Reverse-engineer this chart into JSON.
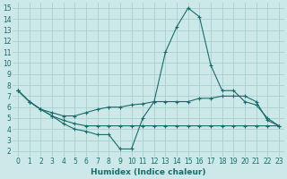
{
  "xlabel": "Humidex (Indice chaleur)",
  "bg_color": "#cce8e8",
  "grid_color": "#aacfcf",
  "line_color": "#1a6b6b",
  "xlim": [
    -0.5,
    23.5
  ],
  "ylim": [
    1.5,
    15.5
  ],
  "xticks": [
    0,
    1,
    2,
    3,
    4,
    5,
    6,
    7,
    8,
    9,
    10,
    11,
    12,
    13,
    14,
    15,
    16,
    17,
    18,
    19,
    20,
    21,
    22,
    23
  ],
  "yticks": [
    2,
    3,
    4,
    5,
    6,
    7,
    8,
    9,
    10,
    11,
    12,
    13,
    14,
    15
  ],
  "line1_x": [
    0,
    1,
    2,
    3,
    4,
    5,
    6,
    7,
    8,
    9,
    10,
    11,
    12,
    13,
    14,
    15,
    16,
    17,
    18,
    19,
    20,
    21,
    22,
    23
  ],
  "line1_y": [
    7.5,
    6.5,
    5.8,
    5.2,
    4.5,
    4.0,
    3.8,
    3.5,
    3.5,
    2.2,
    2.2,
    5.0,
    6.5,
    11.0,
    13.3,
    15.0,
    14.2,
    9.8,
    7.5,
    7.5,
    6.5,
    6.2,
    5.0,
    4.3
  ],
  "line2_x": [
    0,
    1,
    2,
    3,
    4,
    5,
    6,
    7,
    8,
    9,
    10,
    11,
    12,
    13,
    14,
    15,
    16,
    17,
    18,
    19,
    20,
    21,
    22,
    23
  ],
  "line2_y": [
    7.5,
    6.5,
    5.8,
    5.5,
    5.2,
    5.2,
    5.5,
    5.8,
    6.0,
    6.0,
    6.2,
    6.3,
    6.5,
    6.5,
    6.5,
    6.5,
    6.8,
    6.8,
    7.0,
    7.0,
    7.0,
    6.5,
    4.8,
    4.3
  ],
  "line3_x": [
    0,
    1,
    2,
    3,
    4,
    5,
    6,
    7,
    8,
    9,
    10,
    11,
    12,
    13,
    14,
    15,
    16,
    17,
    18,
    19,
    20,
    21,
    22,
    23
  ],
  "line3_y": [
    7.5,
    6.5,
    5.8,
    5.2,
    4.8,
    4.5,
    4.3,
    4.3,
    4.3,
    4.3,
    4.3,
    4.3,
    4.3,
    4.3,
    4.3,
    4.3,
    4.3,
    4.3,
    4.3,
    4.3,
    4.3,
    4.3,
    4.3,
    4.3
  ]
}
